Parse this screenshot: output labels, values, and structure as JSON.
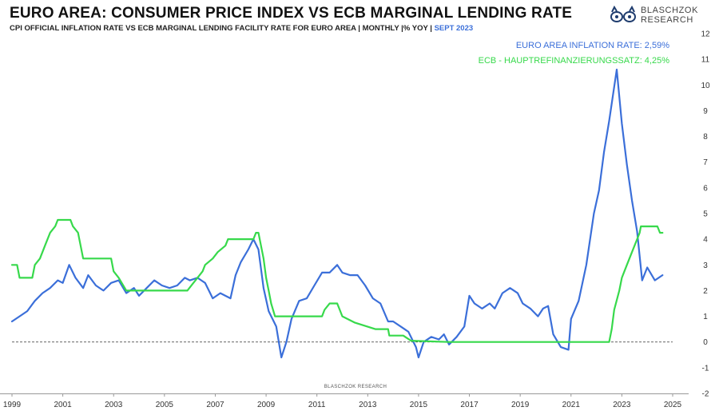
{
  "header": {
    "title": "EURO AREA: CONSUMER PRICE INDEX VS ECB MARGINAL LENDING RATE",
    "subtitle": "CPI OFFICIAL INFLATION RATE VS ECB MARGINAL LENDING FACILITY RATE FOR EURO AREA | MONTHLY |% YOY |",
    "subtitle_highlight": "SEPT 2023"
  },
  "logo": {
    "line1": "BLASCHZOK",
    "line2": "RESEARCH"
  },
  "legend": {
    "inflation": "EURO AREA INFLATION RATE: 2,59%",
    "ecb": "ECB - HAUPTREFINANZIERUNGSSATZ: 4,25%"
  },
  "watermark": "BLASCHZOK  RESEARCH",
  "colors": {
    "inflation": "#3b6fd9",
    "ecb": "#37d94b",
    "zero_line": "#333333"
  },
  "chart_data": {
    "type": "line",
    "title": "EURO AREA: CONSUMER PRICE INDEX VS ECB MARGINAL LENDING RATE",
    "xlabel": "",
    "ylabel": "",
    "xlim": [
      1999,
      2025
    ],
    "ylim": [
      -2,
      12
    ],
    "x_ticks": [
      1999,
      2001,
      2003,
      2005,
      2007,
      2009,
      2011,
      2013,
      2015,
      2017,
      2019,
      2021,
      2023,
      2025
    ],
    "y_ticks": [
      -2,
      -1,
      0,
      1,
      2,
      3,
      4,
      5,
      6,
      7,
      8,
      9,
      10,
      11,
      12
    ],
    "reference_line": 0,
    "series": [
      {
        "name": "EURO AREA INFLATION RATE",
        "color": "#3b6fd9",
        "points": [
          [
            1999.0,
            0.8
          ],
          [
            1999.3,
            1.0
          ],
          [
            1999.6,
            1.2
          ],
          [
            1999.9,
            1.6
          ],
          [
            2000.2,
            1.9
          ],
          [
            2000.5,
            2.1
          ],
          [
            2000.8,
            2.4
          ],
          [
            2001.0,
            2.3
          ],
          [
            2001.25,
            3.0
          ],
          [
            2001.5,
            2.5
          ],
          [
            2001.8,
            2.1
          ],
          [
            2002.0,
            2.6
          ],
          [
            2002.3,
            2.2
          ],
          [
            2002.6,
            2.0
          ],
          [
            2002.9,
            2.3
          ],
          [
            2003.2,
            2.4
          ],
          [
            2003.5,
            1.9
          ],
          [
            2003.8,
            2.1
          ],
          [
            2004.0,
            1.8
          ],
          [
            2004.3,
            2.1
          ],
          [
            2004.6,
            2.4
          ],
          [
            2004.9,
            2.2
          ],
          [
            2005.2,
            2.1
          ],
          [
            2005.5,
            2.2
          ],
          [
            2005.8,
            2.5
          ],
          [
            2006.0,
            2.4
          ],
          [
            2006.3,
            2.5
          ],
          [
            2006.6,
            2.3
          ],
          [
            2006.9,
            1.7
          ],
          [
            2007.2,
            1.9
          ],
          [
            2007.6,
            1.7
          ],
          [
            2007.8,
            2.6
          ],
          [
            2008.0,
            3.1
          ],
          [
            2008.3,
            3.6
          ],
          [
            2008.5,
            4.0
          ],
          [
            2008.7,
            3.6
          ],
          [
            2008.9,
            2.1
          ],
          [
            2009.1,
            1.2
          ],
          [
            2009.4,
            0.6
          ],
          [
            2009.6,
            -0.6
          ],
          [
            2009.8,
            0.0
          ],
          [
            2010.0,
            0.9
          ],
          [
            2010.3,
            1.6
          ],
          [
            2010.6,
            1.7
          ],
          [
            2010.9,
            2.2
          ],
          [
            2011.2,
            2.7
          ],
          [
            2011.5,
            2.7
          ],
          [
            2011.8,
            3.0
          ],
          [
            2012.0,
            2.7
          ],
          [
            2012.3,
            2.6
          ],
          [
            2012.6,
            2.6
          ],
          [
            2012.9,
            2.2
          ],
          [
            2013.2,
            1.7
          ],
          [
            2013.5,
            1.5
          ],
          [
            2013.8,
            0.8
          ],
          [
            2014.0,
            0.8
          ],
          [
            2014.3,
            0.6
          ],
          [
            2014.6,
            0.4
          ],
          [
            2014.9,
            -0.2
          ],
          [
            2015.0,
            -0.6
          ],
          [
            2015.2,
            0.0
          ],
          [
            2015.5,
            0.2
          ],
          [
            2015.8,
            0.1
          ],
          [
            2016.0,
            0.3
          ],
          [
            2016.2,
            -0.1
          ],
          [
            2016.5,
            0.2
          ],
          [
            2016.8,
            0.6
          ],
          [
            2017.0,
            1.8
          ],
          [
            2017.2,
            1.5
          ],
          [
            2017.5,
            1.3
          ],
          [
            2017.8,
            1.5
          ],
          [
            2018.0,
            1.3
          ],
          [
            2018.3,
            1.9
          ],
          [
            2018.6,
            2.1
          ],
          [
            2018.9,
            1.9
          ],
          [
            2019.1,
            1.5
          ],
          [
            2019.4,
            1.3
          ],
          [
            2019.7,
            1.0
          ],
          [
            2019.9,
            1.3
          ],
          [
            2020.1,
            1.4
          ],
          [
            2020.3,
            0.3
          ],
          [
            2020.6,
            -0.2
          ],
          [
            2020.9,
            -0.3
          ],
          [
            2021.0,
            0.9
          ],
          [
            2021.3,
            1.6
          ],
          [
            2021.6,
            3.0
          ],
          [
            2021.9,
            5.0
          ],
          [
            2022.1,
            5.9
          ],
          [
            2022.3,
            7.4
          ],
          [
            2022.5,
            8.6
          ],
          [
            2022.8,
            10.6
          ],
          [
            2023.0,
            8.5
          ],
          [
            2023.2,
            6.9
          ],
          [
            2023.4,
            5.5
          ],
          [
            2023.6,
            4.3
          ],
          [
            2023.8,
            2.4
          ],
          [
            2024.0,
            2.9
          ],
          [
            2024.3,
            2.4
          ],
          [
            2024.6,
            2.6
          ]
        ]
      },
      {
        "name": "ECB - HAUPTREFINANZIERUNGSSATZ",
        "color": "#37d94b",
        "points": [
          [
            1999.0,
            3.0
          ],
          [
            1999.2,
            3.0
          ],
          [
            1999.3,
            2.5
          ],
          [
            1999.8,
            2.5
          ],
          [
            1999.9,
            3.0
          ],
          [
            2000.1,
            3.25
          ],
          [
            2000.3,
            3.75
          ],
          [
            2000.5,
            4.25
          ],
          [
            2000.7,
            4.5
          ],
          [
            2000.8,
            4.75
          ],
          [
            2001.3,
            4.75
          ],
          [
            2001.4,
            4.5
          ],
          [
            2001.6,
            4.25
          ],
          [
            2001.7,
            3.75
          ],
          [
            2001.8,
            3.25
          ],
          [
            2002.9,
            3.25
          ],
          [
            2003.0,
            2.75
          ],
          [
            2003.2,
            2.5
          ],
          [
            2003.5,
            2.0
          ],
          [
            2005.9,
            2.0
          ],
          [
            2006.1,
            2.25
          ],
          [
            2006.3,
            2.5
          ],
          [
            2006.5,
            2.75
          ],
          [
            2006.6,
            3.0
          ],
          [
            2006.9,
            3.25
          ],
          [
            2007.1,
            3.5
          ],
          [
            2007.4,
            3.75
          ],
          [
            2007.5,
            4.0
          ],
          [
            2008.5,
            4.0
          ],
          [
            2008.6,
            4.25
          ],
          [
            2008.7,
            4.25
          ],
          [
            2008.8,
            3.75
          ],
          [
            2008.9,
            3.25
          ],
          [
            2009.0,
            2.5
          ],
          [
            2009.1,
            2.0
          ],
          [
            2009.2,
            1.5
          ],
          [
            2009.35,
            1.0
          ],
          [
            2011.2,
            1.0
          ],
          [
            2011.3,
            1.25
          ],
          [
            2011.5,
            1.5
          ],
          [
            2011.8,
            1.5
          ],
          [
            2011.9,
            1.25
          ],
          [
            2012.0,
            1.0
          ],
          [
            2012.5,
            0.75
          ],
          [
            2013.3,
            0.5
          ],
          [
            2013.8,
            0.5
          ],
          [
            2013.85,
            0.25
          ],
          [
            2014.4,
            0.25
          ],
          [
            2014.7,
            0.05
          ],
          [
            2016.2,
            0.0
          ],
          [
            2022.5,
            0.0
          ],
          [
            2022.6,
            0.5
          ],
          [
            2022.7,
            1.25
          ],
          [
            2022.9,
            2.0
          ],
          [
            2023.0,
            2.5
          ],
          [
            2023.2,
            3.0
          ],
          [
            2023.4,
            3.5
          ],
          [
            2023.5,
            3.75
          ],
          [
            2023.6,
            4.0
          ],
          [
            2023.7,
            4.25
          ],
          [
            2023.75,
            4.5
          ],
          [
            2024.4,
            4.5
          ],
          [
            2024.5,
            4.25
          ],
          [
            2024.6,
            4.25
          ]
        ]
      }
    ]
  }
}
